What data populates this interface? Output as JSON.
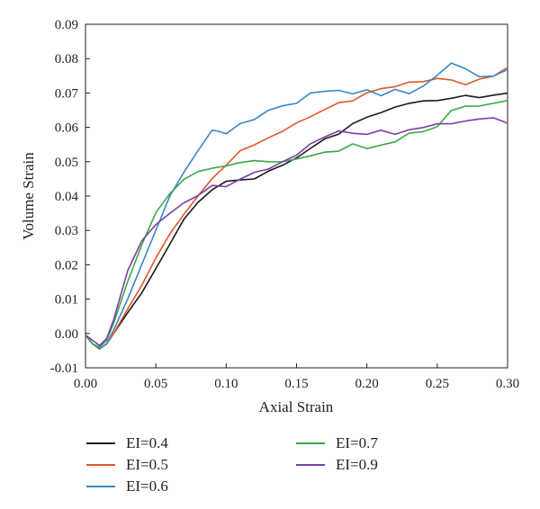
{
  "chart_data": {
    "type": "line",
    "xlabel": "Axial Strain",
    "ylabel": "Volume Strain",
    "xlim": [
      0,
      0.3
    ],
    "ylim": [
      -0.01,
      0.09
    ],
    "xticks": [
      "0.00",
      "0.05",
      "0.10",
      "0.15",
      "0.20",
      "0.25",
      "0.30"
    ],
    "yticks": [
      "-0.01",
      "0.00",
      "0.01",
      "0.02",
      "0.03",
      "0.04",
      "0.05",
      "0.06",
      "0.07",
      "0.08",
      "0.09"
    ],
    "legend_position": "below",
    "series": [
      {
        "name": "EI=0.4",
        "color": "#1a1a1a",
        "x": [
          0,
          0.005,
          0.01,
          0.015,
          0.02,
          0.03,
          0.04,
          0.05,
          0.06,
          0.07,
          0.08,
          0.09,
          0.1,
          0.11,
          0.12,
          0.13,
          0.14,
          0.15,
          0.16,
          0.17,
          0.18,
          0.19,
          0.2,
          0.21,
          0.22,
          0.23,
          0.24,
          0.25,
          0.26,
          0.27,
          0.28,
          0.29,
          0.3
        ],
        "y": [
          -0.0005,
          -0.003,
          -0.0045,
          -0.003,
          0.0,
          0.006,
          0.012,
          0.019,
          0.026,
          0.033,
          0.038,
          0.042,
          0.044,
          0.0445,
          0.045,
          0.047,
          0.049,
          0.051,
          0.054,
          0.0565,
          0.058,
          0.061,
          0.063,
          0.0645,
          0.066,
          0.067,
          0.068,
          0.068,
          0.0685,
          0.069,
          0.0685,
          0.0695,
          0.07
        ]
      },
      {
        "name": "EI=0.5",
        "color": "#e0572a",
        "x": [
          0,
          0.005,
          0.01,
          0.015,
          0.02,
          0.03,
          0.04,
          0.05,
          0.06,
          0.07,
          0.08,
          0.09,
          0.1,
          0.11,
          0.12,
          0.13,
          0.14,
          0.15,
          0.16,
          0.17,
          0.18,
          0.19,
          0.2,
          0.21,
          0.22,
          0.23,
          0.24,
          0.25,
          0.26,
          0.27,
          0.28,
          0.29,
          0.3
        ],
        "y": [
          -0.0005,
          -0.003,
          -0.0045,
          -0.003,
          0.0,
          0.007,
          0.014,
          0.022,
          0.029,
          0.035,
          0.04,
          0.045,
          0.049,
          0.053,
          0.055,
          0.057,
          0.059,
          0.061,
          0.063,
          0.065,
          0.067,
          0.068,
          0.07,
          0.071,
          0.072,
          0.073,
          0.0735,
          0.074,
          0.074,
          0.0725,
          0.074,
          0.075,
          0.0775
        ]
      },
      {
        "name": "EI=0.6",
        "color": "#3a86c4",
        "x": [
          0,
          0.005,
          0.01,
          0.015,
          0.02,
          0.03,
          0.04,
          0.05,
          0.06,
          0.07,
          0.08,
          0.09,
          0.095,
          0.1,
          0.11,
          0.12,
          0.13,
          0.14,
          0.15,
          0.16,
          0.17,
          0.18,
          0.19,
          0.2,
          0.21,
          0.22,
          0.23,
          0.24,
          0.25,
          0.26,
          0.27,
          0.28,
          0.29,
          0.3
        ],
        "y": [
          -0.0005,
          -0.003,
          -0.0045,
          -0.003,
          0.001,
          0.01,
          0.02,
          0.03,
          0.04,
          0.047,
          0.053,
          0.059,
          0.059,
          0.058,
          0.061,
          0.062,
          0.065,
          0.066,
          0.067,
          0.07,
          0.0705,
          0.071,
          0.07,
          0.071,
          0.069,
          0.071,
          0.07,
          0.072,
          0.075,
          0.079,
          0.077,
          0.075,
          0.075,
          0.077
        ]
      },
      {
        "name": "EI=0.7",
        "color": "#3aa845",
        "x": [
          0,
          0.005,
          0.01,
          0.015,
          0.02,
          0.03,
          0.04,
          0.05,
          0.06,
          0.07,
          0.08,
          0.09,
          0.1,
          0.11,
          0.12,
          0.13,
          0.14,
          0.15,
          0.16,
          0.17,
          0.18,
          0.19,
          0.2,
          0.21,
          0.22,
          0.23,
          0.24,
          0.25,
          0.26,
          0.27,
          0.28,
          0.29,
          0.3
        ],
        "y": [
          -0.0005,
          -0.003,
          -0.004,
          -0.002,
          0.003,
          0.015,
          0.026,
          0.035,
          0.041,
          0.045,
          0.047,
          0.048,
          0.049,
          0.05,
          0.0505,
          0.05,
          0.05,
          0.051,
          0.052,
          0.053,
          0.053,
          0.055,
          0.054,
          0.055,
          0.056,
          0.058,
          0.059,
          0.06,
          0.065,
          0.066,
          0.066,
          0.067,
          0.068
        ]
      },
      {
        "name": "EI=0.9",
        "color": "#7b3fa6",
        "x": [
          0,
          0.005,
          0.01,
          0.015,
          0.02,
          0.03,
          0.04,
          0.05,
          0.06,
          0.07,
          0.08,
          0.09,
          0.1,
          0.11,
          0.12,
          0.13,
          0.14,
          0.15,
          0.16,
          0.17,
          0.18,
          0.19,
          0.2,
          0.21,
          0.22,
          0.23,
          0.24,
          0.25,
          0.26,
          0.27,
          0.28,
          0.29,
          0.3
        ],
        "y": [
          -0.0005,
          -0.002,
          -0.0035,
          -0.0015,
          0.004,
          0.018,
          0.027,
          0.032,
          0.035,
          0.038,
          0.04,
          0.043,
          0.043,
          0.045,
          0.047,
          0.048,
          0.05,
          0.052,
          0.055,
          0.057,
          0.059,
          0.058,
          0.058,
          0.059,
          0.058,
          0.059,
          0.06,
          0.061,
          0.061,
          0.062,
          0.0625,
          0.0625,
          0.0615
        ]
      }
    ]
  }
}
